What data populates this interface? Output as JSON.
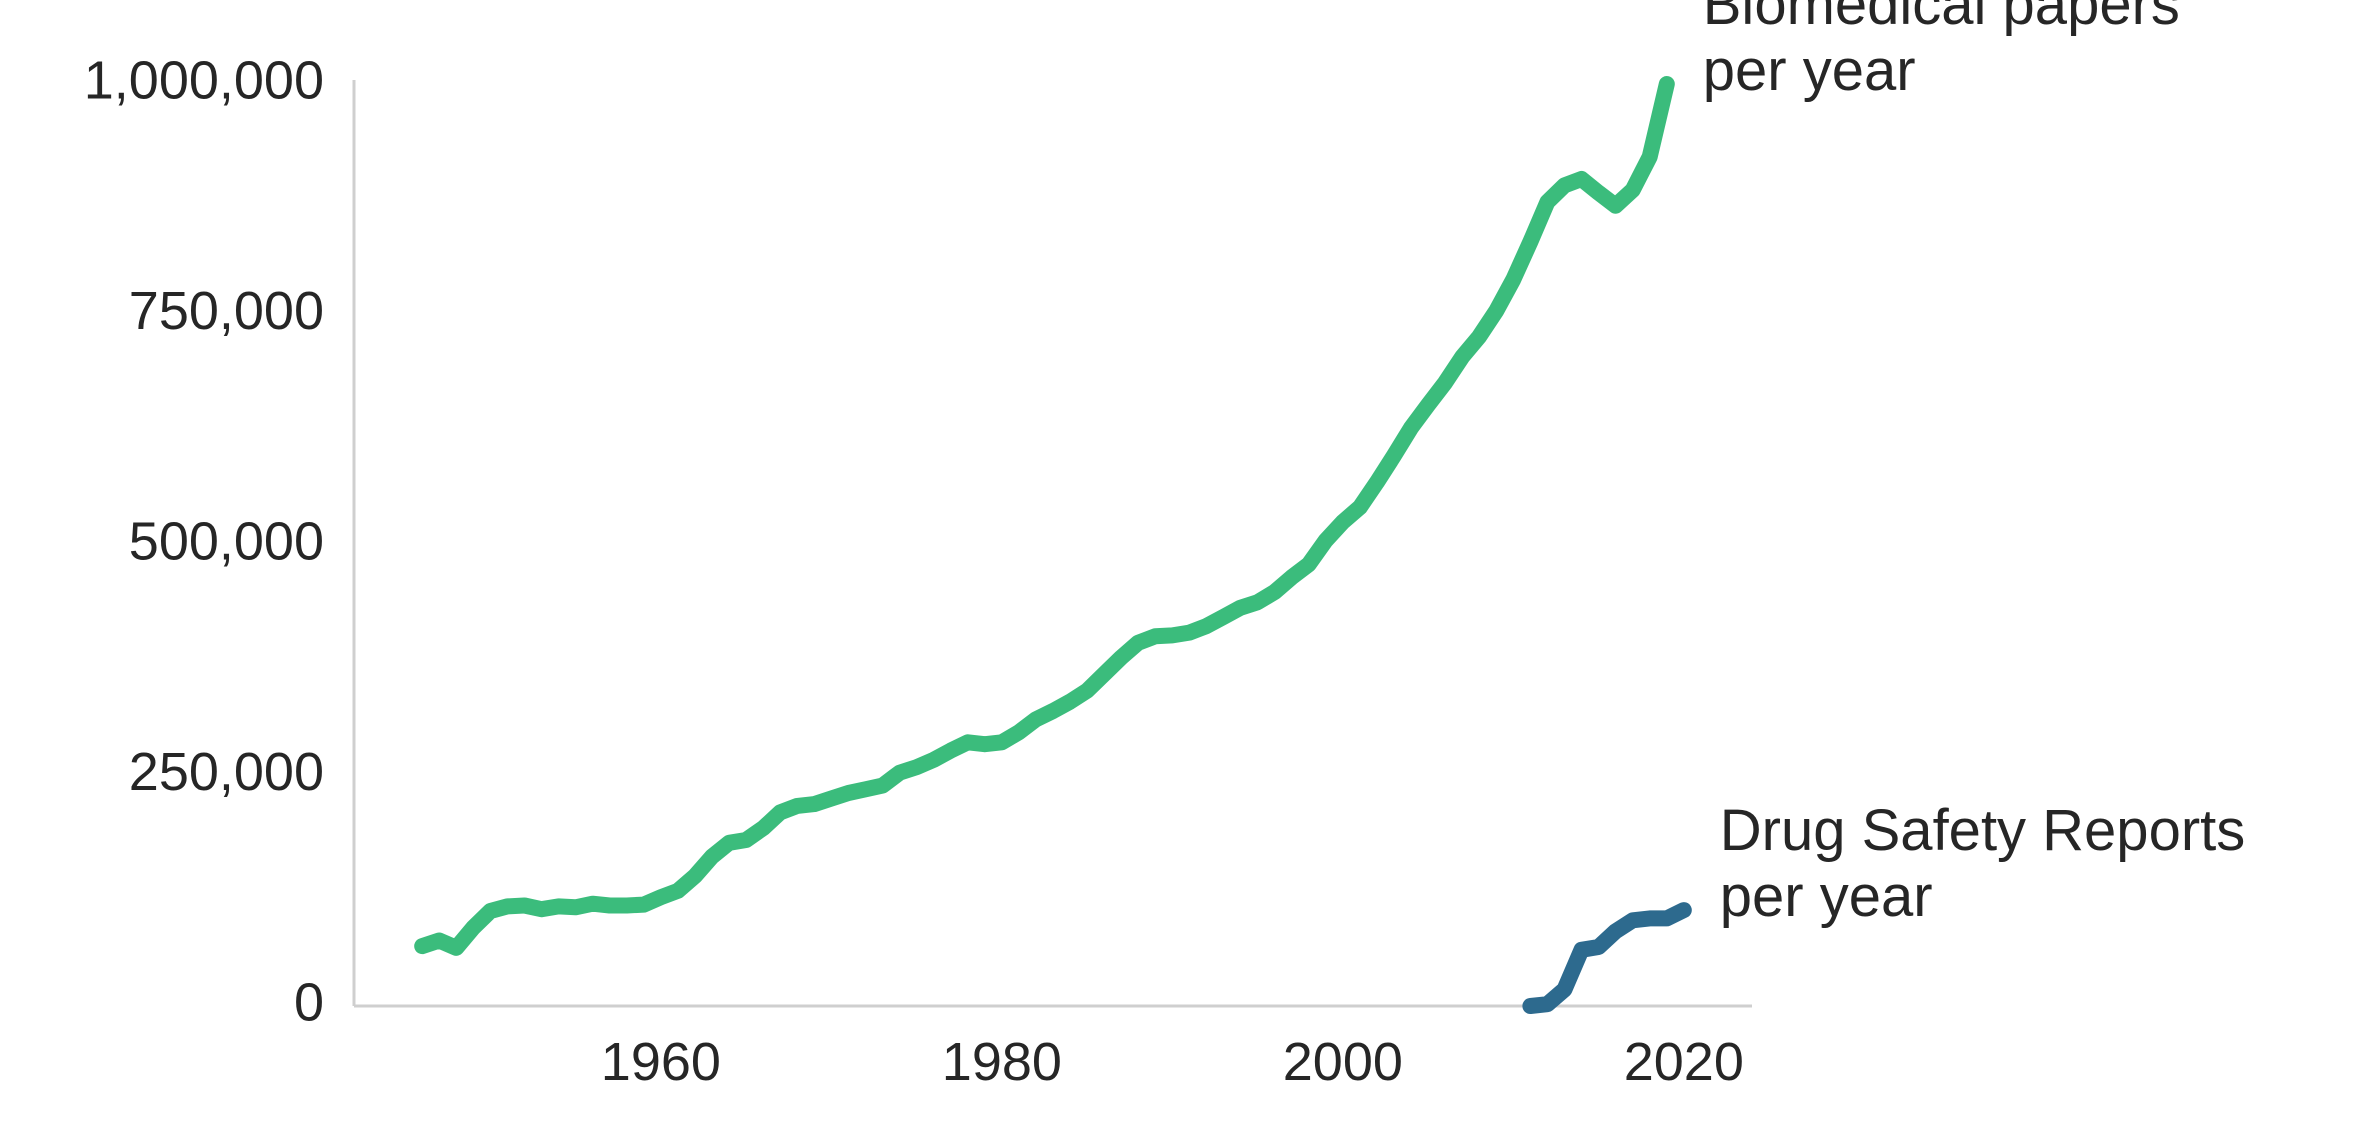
{
  "chart_data": {
    "type": "line",
    "title": "",
    "xlabel": "",
    "ylabel": "",
    "xlim": [
      1942,
      2024
    ],
    "ylim": [
      0,
      1000000
    ],
    "x_ticks": [
      1960,
      1980,
      2000,
      2020
    ],
    "x_tick_labels": [
      "1960",
      "1980",
      "2000",
      "2020"
    ],
    "y_ticks": [
      0,
      250000,
      500000,
      750000,
      1000000
    ],
    "y_tick_labels": [
      "0",
      "250,000",
      "500,000",
      "750,000",
      "1,000,000"
    ],
    "grid": false,
    "legend": "none",
    "series": [
      {
        "name": "Biomedical papers per year",
        "label_lines": [
          "Biomedical papers",
          "per year"
        ],
        "color": "#3bbc7c",
        "points": [
          [
            1946,
            65000
          ],
          [
            1947,
            71000
          ],
          [
            1948,
            63000
          ],
          [
            1949,
            85000
          ],
          [
            1950,
            103000
          ],
          [
            1951,
            108000
          ],
          [
            1952,
            109000
          ],
          [
            1953,
            105000
          ],
          [
            1954,
            108000
          ],
          [
            1955,
            107000
          ],
          [
            1956,
            111000
          ],
          [
            1957,
            109000
          ],
          [
            1958,
            109000
          ],
          [
            1959,
            110000
          ],
          [
            1960,
            118000
          ],
          [
            1961,
            125000
          ],
          [
            1962,
            141000
          ],
          [
            1963,
            162000
          ],
          [
            1964,
            177000
          ],
          [
            1965,
            180000
          ],
          [
            1966,
            193000
          ],
          [
            1967,
            210000
          ],
          [
            1968,
            217000
          ],
          [
            1969,
            219000
          ],
          [
            1970,
            225000
          ],
          [
            1971,
            231000
          ],
          [
            1972,
            235000
          ],
          [
            1973,
            239000
          ],
          [
            1974,
            253000
          ],
          [
            1975,
            259000
          ],
          [
            1976,
            267000
          ],
          [
            1977,
            277000
          ],
          [
            1978,
            286000
          ],
          [
            1979,
            284000
          ],
          [
            1980,
            286000
          ],
          [
            1981,
            297000
          ],
          [
            1982,
            311000
          ],
          [
            1983,
            320000
          ],
          [
            1984,
            330000
          ],
          [
            1985,
            342000
          ],
          [
            1986,
            360000
          ],
          [
            1987,
            378000
          ],
          [
            1988,
            394000
          ],
          [
            1989,
            401000
          ],
          [
            1990,
            402000
          ],
          [
            1991,
            405000
          ],
          [
            1992,
            412000
          ],
          [
            1993,
            422000
          ],
          [
            1994,
            432000
          ],
          [
            1995,
            438000
          ],
          [
            1996,
            449000
          ],
          [
            1997,
            465000
          ],
          [
            1998,
            479000
          ],
          [
            1999,
            505000
          ],
          [
            2000,
            525000
          ],
          [
            2001,
            541000
          ],
          [
            2002,
            568000
          ],
          [
            2003,
            597000
          ],
          [
            2004,
            627000
          ],
          [
            2005,
            652000
          ],
          [
            2006,
            676000
          ],
          [
            2007,
            704000
          ],
          [
            2008,
            726000
          ],
          [
            2009,
            754000
          ],
          [
            2010,
            788000
          ],
          [
            2011,
            829000
          ],
          [
            2012,
            872000
          ],
          [
            2013,
            890000
          ],
          [
            2014,
            897000
          ],
          [
            2015,
            882000
          ],
          [
            2016,
            868000
          ],
          [
            2017,
            885000
          ],
          [
            2018,
            921000
          ],
          [
            2019,
            1000000
          ]
        ]
      },
      {
        "name": "Drug Safety Reports per year",
        "label_lines": [
          "Drug Safety Reports",
          "per year"
        ],
        "color": "#2d6a8e",
        "points": [
          [
            2011,
            0
          ],
          [
            2012,
            2000
          ],
          [
            2013,
            18000
          ],
          [
            2014,
            61000
          ],
          [
            2015,
            64000
          ],
          [
            2016,
            81000
          ],
          [
            2017,
            93000
          ],
          [
            2018,
            95000
          ],
          [
            2019,
            95000
          ],
          [
            2020,
            104000
          ]
        ]
      }
    ]
  }
}
